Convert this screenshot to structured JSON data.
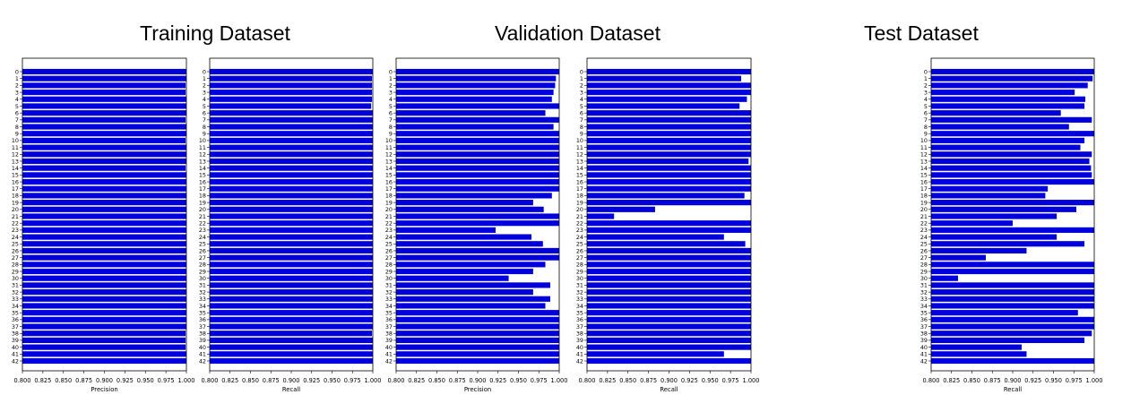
{
  "titles": {
    "training": "Training Dataset",
    "validation": "Validation Dataset",
    "test": "Test Dataset"
  },
  "colors": {
    "bar": "#0000dd",
    "axis": "#000000",
    "background": "#ffffff"
  },
  "chart_data": [
    {
      "type": "bar",
      "orientation": "horizontal",
      "group": "Training Dataset",
      "xlabel": "Precision",
      "xlim": [
        0.8,
        1.0
      ],
      "xticks": [
        "0.800",
        "0.825",
        "0.850",
        "0.875",
        "0.900",
        "0.925",
        "0.950",
        "0.975",
        "1.000"
      ],
      "categories": [
        "0",
        "1",
        "2",
        "3",
        "4",
        "5",
        "6",
        "7",
        "8",
        "9",
        "10",
        "11",
        "12",
        "13",
        "14",
        "15",
        "16",
        "17",
        "18",
        "19",
        "20",
        "21",
        "22",
        "23",
        "24",
        "25",
        "26",
        "27",
        "28",
        "29",
        "30",
        "31",
        "32",
        "33",
        "34",
        "35",
        "36",
        "37",
        "38",
        "39",
        "40",
        "41",
        "42"
      ],
      "values": [
        1.0,
        1.0,
        0.999,
        0.999,
        1.0,
        1.0,
        1.0,
        0.999,
        1.0,
        1.0,
        0.999,
        1.0,
        1.0,
        1.0,
        0.999,
        1.0,
        1.0,
        1.0,
        1.0,
        1.0,
        1.0,
        1.0,
        1.0,
        1.0,
        1.0,
        1.0,
        1.0,
        1.0,
        1.0,
        1.0,
        1.0,
        1.0,
        1.0,
        1.0,
        1.0,
        1.0,
        1.0,
        1.0,
        0.999,
        0.999,
        0.999,
        1.0,
        1.0
      ]
    },
    {
      "type": "bar",
      "orientation": "horizontal",
      "group": "Training Dataset",
      "xlabel": "Recall",
      "xlim": [
        0.8,
        1.0
      ],
      "xticks": [
        "0.800",
        "0.825",
        "0.850",
        "0.875",
        "0.900",
        "0.925",
        "0.950",
        "0.975",
        "1.000"
      ],
      "categories": [
        "0",
        "1",
        "2",
        "3",
        "4",
        "5",
        "6",
        "7",
        "8",
        "9",
        "10",
        "11",
        "12",
        "13",
        "14",
        "15",
        "16",
        "17",
        "18",
        "19",
        "20",
        "21",
        "22",
        "23",
        "24",
        "25",
        "26",
        "27",
        "28",
        "29",
        "30",
        "31",
        "32",
        "33",
        "34",
        "35",
        "36",
        "37",
        "38",
        "39",
        "40",
        "41",
        "42"
      ],
      "values": [
        1.0,
        0.999,
        0.999,
        0.999,
        0.999,
        0.998,
        1.0,
        1.0,
        1.0,
        1.0,
        1.0,
        1.0,
        1.0,
        1.0,
        1.0,
        1.0,
        1.0,
        1.0,
        1.0,
        1.0,
        1.0,
        1.0,
        1.0,
        1.0,
        1.0,
        1.0,
        1.0,
        1.0,
        1.0,
        1.0,
        1.0,
        1.0,
        1.0,
        1.0,
        1.0,
        1.0,
        1.0,
        1.0,
        0.999,
        1.0,
        1.0,
        1.0,
        1.0
      ]
    },
    {
      "type": "bar",
      "orientation": "horizontal",
      "group": "Validation Dataset",
      "xlabel": "Precision",
      "xlim": [
        0.8,
        1.0
      ],
      "xticks": [
        "0.800",
        "0.825",
        "0.850",
        "0.875",
        "0.900",
        "0.925",
        "0.950",
        "0.975",
        "1.000"
      ],
      "categories": [
        "0",
        "1",
        "2",
        "3",
        "4",
        "5",
        "6",
        "7",
        "8",
        "9",
        "10",
        "11",
        "12",
        "13",
        "14",
        "15",
        "16",
        "17",
        "18",
        "19",
        "20",
        "21",
        "22",
        "23",
        "24",
        "25",
        "26",
        "27",
        "28",
        "29",
        "30",
        "31",
        "32",
        "33",
        "34",
        "35",
        "36",
        "37",
        "38",
        "39",
        "40",
        "41",
        "42"
      ],
      "values": [
        1.0,
        0.996,
        0.995,
        0.993,
        0.991,
        1.0,
        0.983,
        1.0,
        0.993,
        1.0,
        1.0,
        1.0,
        1.0,
        1.0,
        1.0,
        1.0,
        1.0,
        1.0,
        0.991,
        0.968,
        0.981,
        1.0,
        1.0,
        0.922,
        0.966,
        0.98,
        1.0,
        1.0,
        0.983,
        0.968,
        0.938,
        0.989,
        0.968,
        0.989,
        0.983,
        1.0,
        1.0,
        1.0,
        1.0,
        1.0,
        1.0,
        1.0,
        1.0
      ]
    },
    {
      "type": "bar",
      "orientation": "horizontal",
      "group": "Validation Dataset",
      "xlabel": "Recall",
      "xlim": [
        0.8,
        1.0
      ],
      "xticks": [
        "0.800",
        "0.825",
        "0.850",
        "0.875",
        "0.900",
        "0.925",
        "0.950",
        "0.975",
        "1.000"
      ],
      "categories": [
        "0",
        "1",
        "2",
        "3",
        "4",
        "5",
        "6",
        "7",
        "8",
        "9",
        "10",
        "11",
        "12",
        "13",
        "14",
        "15",
        "16",
        "17",
        "18",
        "19",
        "20",
        "21",
        "22",
        "23",
        "24",
        "25",
        "26",
        "27",
        "28",
        "29",
        "30",
        "31",
        "32",
        "33",
        "34",
        "35",
        "36",
        "37",
        "38",
        "39",
        "40",
        "41",
        "42"
      ],
      "values": [
        1.0,
        0.988,
        1.0,
        1.0,
        0.995,
        0.986,
        1.0,
        1.0,
        1.0,
        1.0,
        1.0,
        1.0,
        1.0,
        0.997,
        1.0,
        1.0,
        1.0,
        1.0,
        0.992,
        1.0,
        0.883,
        0.833,
        1.0,
        1.0,
        0.967,
        0.993,
        1.0,
        1.0,
        1.0,
        1.0,
        1.0,
        1.0,
        1.0,
        1.0,
        1.0,
        1.0,
        1.0,
        1.0,
        1.0,
        1.0,
        1.0,
        0.967,
        1.0
      ]
    },
    {
      "type": "bar",
      "orientation": "horizontal",
      "group": "Test Dataset",
      "xlabel": "Recall",
      "xlim": [
        0.8,
        1.0
      ],
      "xticks": [
        "0.800",
        "0.825",
        "0.850",
        "0.875",
        "0.900",
        "0.925",
        "0.950",
        "0.975",
        "1.000"
      ],
      "categories": [
        "0",
        "1",
        "2",
        "3",
        "4",
        "5",
        "6",
        "7",
        "8",
        "9",
        "10",
        "11",
        "12",
        "13",
        "14",
        "15",
        "16",
        "17",
        "18",
        "19",
        "20",
        "21",
        "22",
        "23",
        "24",
        "25",
        "26",
        "27",
        "28",
        "29",
        "30",
        "31",
        "32",
        "33",
        "34",
        "35",
        "36",
        "37",
        "38",
        "39",
        "40",
        "41",
        "42"
      ],
      "values": [
        1.0,
        0.998,
        0.992,
        0.976,
        0.989,
        0.988,
        0.959,
        0.997,
        0.969,
        1.0,
        0.988,
        0.983,
        0.997,
        0.994,
        0.996,
        0.997,
        1.0,
        0.943,
        0.94,
        1.0,
        0.978,
        0.954,
        0.9,
        1.0,
        0.954,
        0.988,
        0.917,
        0.867,
        1.0,
        1.0,
        0.833,
        1.0,
        1.0,
        1.0,
        1.0,
        0.98,
        1.0,
        1.0,
        0.997,
        0.988,
        0.911,
        0.917,
        1.0
      ]
    }
  ]
}
